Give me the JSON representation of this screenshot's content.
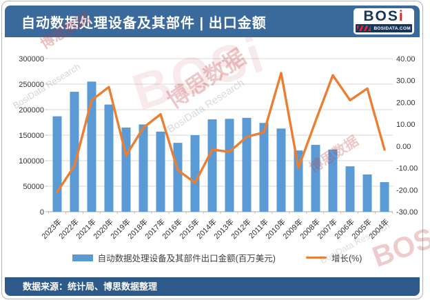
{
  "header": {
    "title": "自动数据处理设备及其部件 | 出口金额",
    "logo": {
      "main": "BOS",
      "accent": "i",
      "subtext": "BOSIDATA.COM"
    }
  },
  "legend": {
    "bar_label": "自动数据处理设备及其部件出口金额(百万美元)",
    "line_label": "增长(%)"
  },
  "footer": {
    "source": "数据来源：统计局、博思数据整理"
  },
  "watermarks": [
    "博思数据",
    "BosiData Research",
    "博思数据",
    "BosiData Research",
    "博思数据",
    "BOSi",
    "BOSi",
    "BosiData Research"
  ],
  "colors": {
    "bar": "#5B9BD5",
    "line": "#ED7D31",
    "header_bg": "#3A6A9C",
    "footer_bg": "#2D5A88",
    "gridline": "#D9D9D9",
    "axis_line": "#A6A6A6",
    "axis_text": "#333333",
    "watermark_red": "#C23A3A",
    "watermark_gray": "#8A9099"
  },
  "chart_data": {
    "type": "bar+line",
    "title": "自动数据处理设备及其部件 | 出口金额",
    "categories": [
      "2023年",
      "2022年",
      "2021年",
      "2020年",
      "2019年",
      "2018年",
      "2017年",
      "2016年",
      "2015年",
      "2014年",
      "2013年",
      "2012年",
      "2011年",
      "2010年",
      "2009年",
      "2008年",
      "2007年",
      "2006年",
      "2005年",
      "2004年"
    ],
    "series": [
      {
        "name": "自动数据处理设备及其部件出口金额(百万美元)",
        "type": "bar",
        "axis": "left",
        "values": [
          187000,
          235000,
          255000,
          210000,
          165000,
          171000,
          157000,
          135000,
          150000,
          181000,
          182000,
          184000,
          174000,
          163000,
          120000,
          131000,
          122000,
          89000,
          73000,
          58000
        ]
      },
      {
        "name": "增长(%)",
        "type": "line",
        "axis": "right",
        "values": [
          -21.0,
          -9.0,
          21.0,
          27.0,
          -4.3,
          8.4,
          14.6,
          -11.0,
          -16.8,
          -1.6,
          -2.6,
          4.2,
          6.3,
          33.4,
          -10.0,
          11.5,
          32.4,
          21.0,
          26.3,
          -1.6
        ]
      }
    ],
    "left_axis": {
      "min": 0,
      "max": 300000,
      "step": 50000,
      "ticks": [
        "300000",
        "250000",
        "200000",
        "150000",
        "100000",
        "50000",
        "0"
      ]
    },
    "right_axis": {
      "min": -30,
      "max": 40,
      "step": 10,
      "ticks": [
        "40.00",
        "30.00",
        "20.00",
        "10.00",
        "0.00",
        "-10.00",
        "-20.00",
        "-30.00"
      ]
    },
    "grid": true,
    "legend_position": "bottom"
  }
}
